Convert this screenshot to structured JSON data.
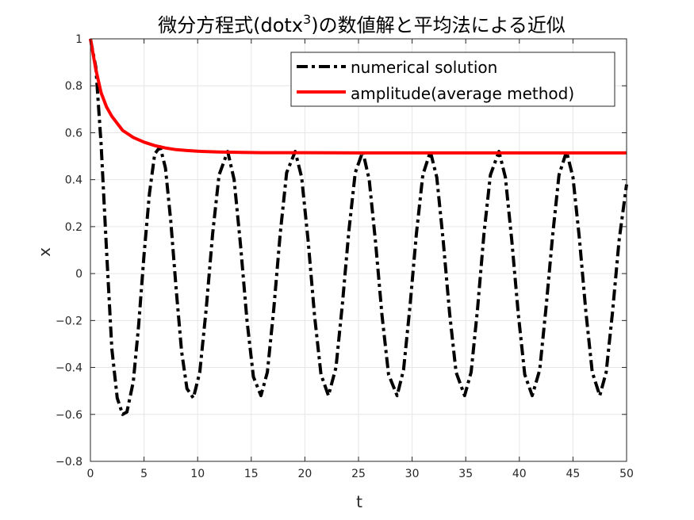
{
  "chart_data": {
    "type": "line",
    "title": "微分方程式(dotx",
    "title_sup": "3",
    "title_tail": ")の数値解と平均法による近似",
    "xlabel": "t",
    "ylabel": "x",
    "xlim": [
      0,
      50
    ],
    "ylim": [
      -0.8,
      1
    ],
    "xticks": [
      "0",
      "5",
      "10",
      "15",
      "20",
      "25",
      "30",
      "35",
      "40",
      "45",
      "50"
    ],
    "xtick_values": [
      0,
      5,
      10,
      15,
      20,
      25,
      30,
      35,
      40,
      45,
      50
    ],
    "yticks": [
      "−0.8",
      "−0.6",
      "−0.4",
      "−0.2",
      "0",
      "0.2",
      "0.4",
      "0.6",
      "0.8",
      "1"
    ],
    "ytick_values": [
      -0.8,
      -0.6,
      -0.4,
      -0.2,
      0,
      0.2,
      0.4,
      0.6,
      0.8,
      1
    ],
    "grid": true,
    "legend_position": "top-right",
    "series": [
      {
        "name": "numerical solution",
        "color": "#000000",
        "style": "dash-dot",
        "x": [
          0,
          0.5,
          1,
          1.5,
          2,
          2.5,
          3,
          3.4,
          4,
          4.5,
          5,
          5.5,
          6,
          6.5,
          7,
          7.5,
          8,
          8.5,
          9,
          9.6,
          10.2,
          10.8,
          11.4,
          12,
          12.8,
          13.4,
          14,
          14.6,
          15.2,
          15.9,
          16.5,
          17.1,
          17.7,
          18.3,
          19.1,
          19.7,
          20.3,
          20.9,
          21.5,
          22.2,
          22.9,
          23.5,
          24.1,
          24.7,
          25.4,
          26,
          26.6,
          27.2,
          27.8,
          28.6,
          29.2,
          29.8,
          30.4,
          31,
          31.7,
          32.3,
          32.9,
          33.5,
          34.1,
          34.9,
          35.5,
          36.1,
          36.7,
          37.3,
          38.1,
          38.7,
          39.3,
          39.9,
          40.5,
          41.2,
          41.9,
          42.5,
          43.1,
          43.7,
          44.4,
          45,
          45.6,
          46.2,
          46.8,
          47.5,
          48.1,
          48.7,
          49.3,
          50
        ],
        "y": [
          1,
          0.88,
          0.55,
          0.1,
          -0.32,
          -0.53,
          -0.6,
          -0.59,
          -0.46,
          -0.22,
          0.08,
          0.34,
          0.51,
          0.54,
          0.45,
          0.22,
          -0.07,
          -0.33,
          -0.49,
          -0.53,
          -0.42,
          -0.15,
          0.17,
          0.42,
          0.52,
          0.4,
          0.12,
          -0.2,
          -0.44,
          -0.52,
          -0.42,
          -0.15,
          0.17,
          0.43,
          0.52,
          0.41,
          0.14,
          -0.18,
          -0.43,
          -0.52,
          -0.4,
          -0.13,
          0.18,
          0.43,
          0.52,
          0.4,
          0.13,
          -0.18,
          -0.43,
          -0.52,
          -0.41,
          -0.14,
          0.17,
          0.42,
          0.52,
          0.41,
          0.14,
          -0.17,
          -0.42,
          -0.52,
          -0.42,
          -0.15,
          0.17,
          0.42,
          0.52,
          0.41,
          0.14,
          -0.17,
          -0.43,
          -0.52,
          -0.41,
          -0.14,
          0.16,
          0.42,
          0.52,
          0.41,
          0.15,
          -0.16,
          -0.42,
          -0.52,
          -0.42,
          -0.16,
          0.14,
          0.38
        ]
      },
      {
        "name": "amplitude(average method)",
        "color": "#ff0000",
        "style": "solid",
        "x": [
          0,
          0.5,
          1,
          1.5,
          2,
          3,
          4,
          5,
          6,
          7,
          8,
          9,
          10,
          12,
          14,
          16,
          18,
          20,
          25,
          30,
          35,
          40,
          45,
          50
        ],
        "y": [
          1,
          0.87,
          0.77,
          0.71,
          0.67,
          0.61,
          0.58,
          0.56,
          0.545,
          0.535,
          0.528,
          0.524,
          0.521,
          0.518,
          0.516,
          0.515,
          0.515,
          0.515,
          0.514,
          0.514,
          0.514,
          0.514,
          0.514,
          0.514
        ]
      }
    ]
  }
}
